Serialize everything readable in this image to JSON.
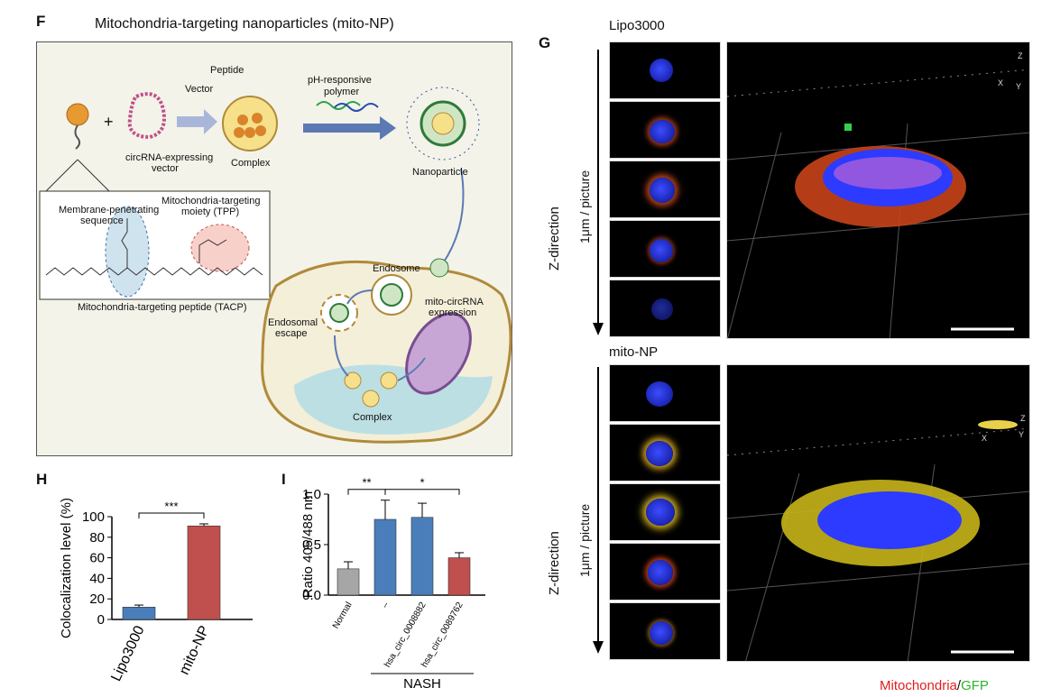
{
  "panel_f": {
    "letter": "F",
    "title": "Mitochondria-targeting nanoparticles (mito-NP)",
    "labels": {
      "peptide": "Peptide",
      "vector": "Vector",
      "ph_polymer_1": "pH-responsive",
      "ph_polymer_2": "polymer",
      "circrna_vector_1": "circRNA-expressing",
      "circrna_vector_2": "vector",
      "complex": "Complex",
      "nanoparticle": "Nanoparticle",
      "membrane_1": "Membrane-penetrating",
      "membrane_2": "sequence",
      "mito_target_1": "Mitochondria-targeting",
      "mito_target_2": "moiety (TPP)",
      "tacp": "Mitochondria-targeting peptide (TACP)",
      "endosome": "Endosome",
      "endosomal_1": "Endosomal",
      "endosomal_2": "escape",
      "mito_circ_1": "mito-circRNA",
      "mito_circ_2": "expression",
      "complex_cell": "Complex",
      "plus": "+"
    }
  },
  "panel_g": {
    "letter": "G",
    "top_label": "Lipo3000",
    "bottom_label": "mito-NP",
    "z_direction": "Z-direction",
    "per_picture": "1μm / picture",
    "legend_red": "Mitochondria",
    "legend_sep": "/",
    "legend_green": "GFP",
    "axis_x": "X",
    "axis_y": "Y",
    "axis_z": "Z"
  },
  "chart_data": [
    {
      "panel": "H",
      "type": "bar",
      "categories": [
        "Lipo3000",
        "mito-NP"
      ],
      "values": [
        12,
        91
      ],
      "errors": [
        2,
        2
      ],
      "colors": [
        "#4a7ebb",
        "#c0504d"
      ],
      "ylabel": "Colocalization level (%)",
      "ylim": [
        0,
        100
      ],
      "yticks": [
        0,
        20,
        40,
        60,
        80,
        100
      ],
      "significance": [
        {
          "pair": [
            0,
            1
          ],
          "label": "***"
        }
      ]
    },
    {
      "panel": "I",
      "type": "bar",
      "categories": [
        "Normal",
        "–",
        "hsa_circ_0008882",
        "hsa_circ_0089762"
      ],
      "values": [
        0.26,
        0.75,
        0.77,
        0.37
      ],
      "errors": [
        0.07,
        0.19,
        0.14,
        0.05
      ],
      "colors": [
        "#a6a6a6",
        "#4a7ebb",
        "#4a7ebb",
        "#c0504d"
      ],
      "ylabel": "Ratio 405/488 nm",
      "ylim": [
        0,
        1.0
      ],
      "yticks": [
        0.0,
        0.5,
        1.0
      ],
      "group_label": "NASH",
      "significance": [
        {
          "pair": [
            0,
            1
          ],
          "label": "**"
        },
        {
          "pair": [
            1,
            3
          ],
          "label": "*"
        }
      ]
    }
  ]
}
